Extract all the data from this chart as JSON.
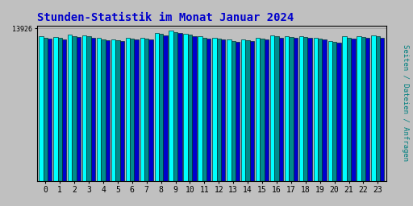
{
  "title": "Stunden-Statistik im Monat Januar 2024",
  "title_color": "#0000CC",
  "title_fontsize": 10,
  "ylabel": "Seiten / Dateien / Anfragen",
  "ylabel_color": "#008080",
  "ylabel_fontsize": 6.5,
  "background_color": "#C0C0C0",
  "plot_bg_color": "#C0C0C0",
  "hours": [
    0,
    1,
    2,
    3,
    4,
    5,
    6,
    7,
    8,
    9,
    10,
    11,
    12,
    13,
    14,
    15,
    16,
    17,
    18,
    19,
    20,
    21,
    22,
    23
  ],
  "ytick_label": "13926",
  "ytick_value": 13926,
  "bar1_color": "#00FFFF",
  "bar2_color": "#008B8B",
  "bar3_color": "#0000CD",
  "bar_edge_color": "#003333",
  "values_pages": [
    13200,
    13150,
    13350,
    13300,
    13050,
    12950,
    13100,
    13100,
    13500,
    13700,
    13450,
    13200,
    13100,
    12900,
    12950,
    13100,
    13300,
    13250,
    13250,
    13100,
    12800,
    13200,
    13250,
    13300
  ],
  "values_files": [
    13100,
    13050,
    13250,
    13200,
    12950,
    12850,
    13000,
    13000,
    13400,
    13600,
    13350,
    13100,
    13000,
    12800,
    12850,
    13000,
    13200,
    13150,
    13150,
    13000,
    12700,
    13100,
    13150,
    13200
  ],
  "values_requests": [
    13000,
    12950,
    13150,
    13100,
    12850,
    12750,
    12900,
    12900,
    13300,
    13500,
    13250,
    13000,
    12900,
    12700,
    12750,
    12900,
    13100,
    13050,
    13050,
    12900,
    12600,
    13000,
    13050,
    13100
  ],
  "ymin": 0,
  "ymax": 14200,
  "figwidth": 5.12,
  "figheight": 2.56,
  "dpi": 100
}
